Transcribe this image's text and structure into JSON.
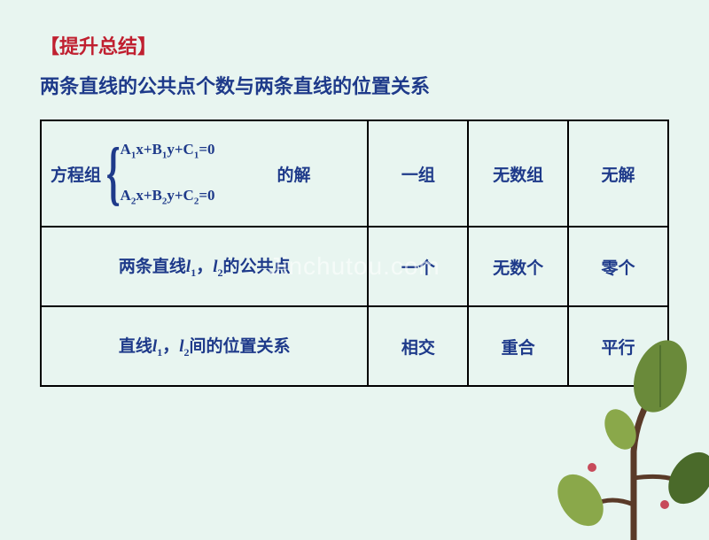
{
  "heading": "【提升总结】",
  "subtitle": "两条直线的公共点个数与两条直线的位置关系",
  "watermark": "Jinchutou.com",
  "table": {
    "row1": {
      "label_prefix": "方程组",
      "eq1_html": "A<sub>1</sub>x+B<sub>1</sub>y+C<sub>1</sub>=0",
      "eq2_html": "A<sub>2</sub>x+B<sub>2</sub>y+C<sub>2</sub>=0",
      "label_suffix": "的解",
      "c1": "一组",
      "c2": "无数组",
      "c3": "无解"
    },
    "row2": {
      "label_html": "两条直线<span class=\"italic-l\">l<sub>1</sub></span>，<span class=\"italic-l\">l<sub>2</sub></span>的公共点",
      "c1": "一个",
      "c2": "无数个",
      "c3": "零个"
    },
    "row3": {
      "label_html": "直线<span class=\"italic-l\">l<sub>1</sub></span>，<span class=\"italic-l\">l<sub>2</sub></span>间的位置关系",
      "c1": "相交",
      "c2": "重合",
      "c3": "平行"
    }
  },
  "colors": {
    "bg": "#e8f5f0",
    "text_primary": "#1e3a8a",
    "heading": "#c02030",
    "border": "#000000",
    "trunk": "#5a3a28",
    "leaf1": "#6a8a3a",
    "leaf2": "#8aa84a",
    "leaf3": "#4a6a2a"
  }
}
